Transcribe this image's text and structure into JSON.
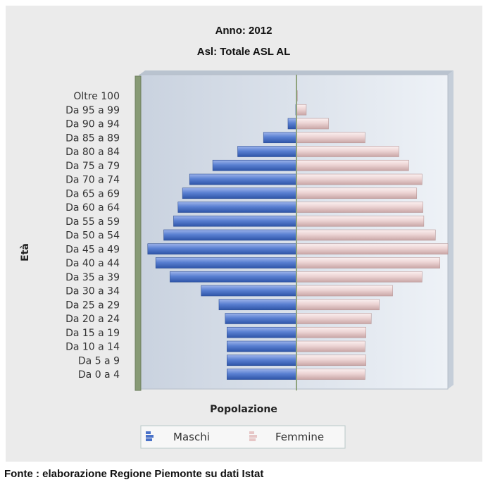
{
  "chart_data": {
    "type": "bar",
    "orientation": "horizontal-pyramid",
    "title": "Anno: 2012",
    "subtitle": "Asl: Totale ASL AL",
    "xlabel": "Popolazione",
    "ylabel": "Età",
    "categories": [
      "Da  0 a  4",
      "Da  5 a  9",
      "Da 10 a 14",
      "Da 15 a 19",
      "Da 20 a 24",
      "Da 25 a 29",
      "Da 30 a 34",
      "Da 35 a 39",
      "Da 40 a 44",
      "Da 45 a 49",
      "Da 50 a 54",
      "Da 55 a 59",
      "Da 60 a 64",
      "Da 65 a 69",
      "Da 70 a 74",
      "Da 75 a 79",
      "Da 80 a 84",
      "Da 85 a 89",
      "Da 90 a 94",
      "Da 95 a 99",
      "Oltre 100"
    ],
    "series": [
      {
        "name": "Maschi",
        "color": "#4a72c8",
        "values": [
          7800,
          7800,
          7800,
          7800,
          8000,
          8700,
          10700,
          14200,
          15800,
          16700,
          14900,
          13800,
          13300,
          12800,
          12000,
          9400,
          6600,
          3700,
          950,
          80,
          10
        ]
      },
      {
        "name": "Femmine",
        "color": "#e6c6c6",
        "values": [
          7700,
          7800,
          7700,
          7800,
          8400,
          9300,
          10800,
          14100,
          16100,
          17000,
          15600,
          14300,
          14200,
          13500,
          14100,
          12600,
          11500,
          7700,
          3600,
          1100,
          100
        ]
      }
    ],
    "grid": false,
    "legend_position": "bottom"
  },
  "source_text": "Fonte : elaborazione Regione Piemonte su dati Istat"
}
